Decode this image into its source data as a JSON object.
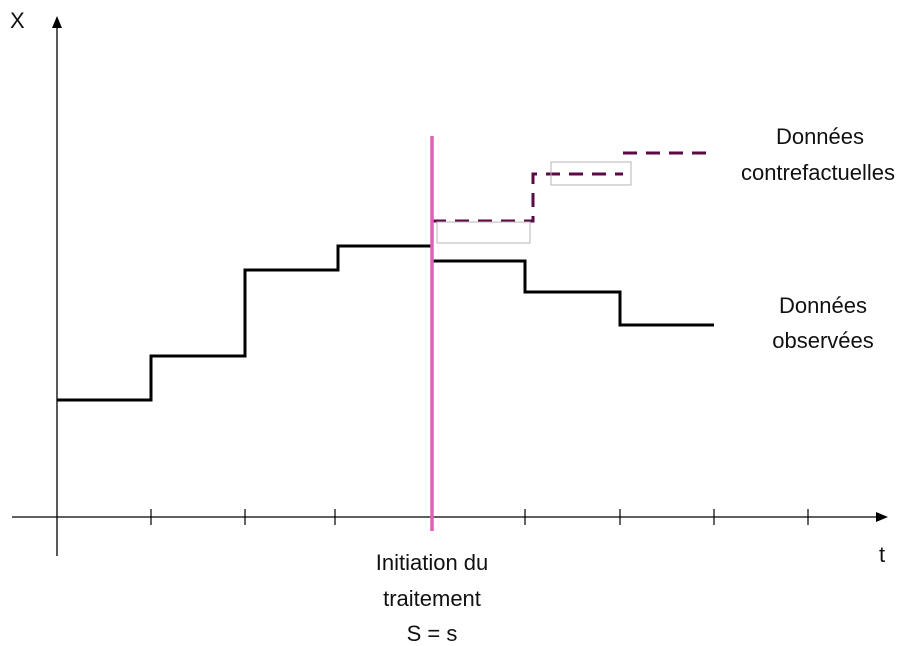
{
  "axes": {
    "y_label": "X",
    "x_label": "t"
  },
  "treatment": {
    "label_lines": [
      "Initiation du",
      "traitement",
      "S = s"
    ]
  },
  "series": {
    "counterfactual_lines": [
      "Données",
      "contrefactuelles"
    ],
    "observed_lines": [
      "Données",
      "observées"
    ]
  },
  "colors": {
    "treatment_line": "#e060b8",
    "counterfactual": "#5a0a45",
    "observed": "#000000",
    "axes": "#000000"
  }
}
